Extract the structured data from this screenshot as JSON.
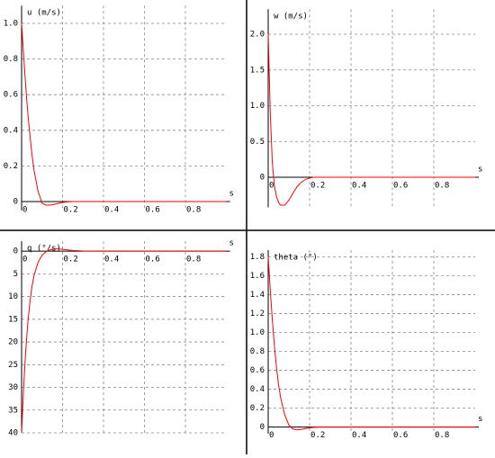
{
  "chart_data": [
    {
      "type": "line",
      "y_label": "u (m/s)",
      "x_label": "s",
      "color": "#ff0000",
      "grid": true,
      "x": [
        0,
        0.01,
        0.02,
        0.03,
        0.04,
        0.05,
        0.06,
        0.08,
        0.1,
        0.12,
        0.14,
        0.16,
        0.18,
        0.2,
        0.22,
        0.25,
        0.3,
        0.4,
        0.6,
        0.8,
        1.0
      ],
      "values": [
        1.0,
        0.82,
        0.65,
        0.5,
        0.38,
        0.27,
        0.18,
        0.06,
        -0.01,
        -0.02,
        -0.02,
        -0.015,
        -0.01,
        -0.005,
        -0.002,
        0,
        0,
        0,
        0,
        0,
        0
      ],
      "xlim": [
        0,
        1.0
      ],
      "ylim": [
        -0.05,
        1.1
      ],
      "xticks": [
        0,
        0.2,
        0.4,
        0.6,
        0.8
      ],
      "yticks": [
        0,
        0.2,
        0.4,
        0.6,
        0.8,
        {
          "value": 1,
          "label": "1.0"
        }
      ]
    },
    {
      "type": "line",
      "y_label": "w (m/s)",
      "x_label": "s",
      "color": "#ff0000",
      "grid": true,
      "x": [
        0,
        0.01,
        0.02,
        0.03,
        0.04,
        0.05,
        0.06,
        0.08,
        0.1,
        0.12,
        0.14,
        0.16,
        0.18,
        0.2,
        0.22,
        0.25,
        0.3,
        0.4,
        0.6,
        0.8,
        1.0
      ],
      "values": [
        2.0,
        0.9,
        0.2,
        -0.12,
        -0.27,
        -0.35,
        -0.39,
        -0.39,
        -0.32,
        -0.22,
        -0.13,
        -0.07,
        -0.03,
        -0.01,
        0,
        0,
        0,
        0,
        0,
        0,
        0
      ],
      "xlim": [
        0,
        1.0
      ],
      "ylim": [
        -0.42,
        2.35
      ],
      "xticks": [
        0,
        0.2,
        0.4,
        0.6,
        0.8
      ],
      "yticks": [
        0,
        0.5,
        {
          "value": 1,
          "label": "1.0"
        },
        1.5,
        {
          "value": 2,
          "label": "2.0"
        }
      ]
    },
    {
      "type": "line",
      "y_label": "q (°/s)",
      "x_label": "s",
      "color": "#ff0000",
      "grid": true,
      "x": [
        0,
        0.01,
        0.02,
        0.03,
        0.04,
        0.05,
        0.06,
        0.08,
        0.1,
        0.12,
        0.14,
        0.16,
        0.18,
        0.2,
        0.22,
        0.25,
        0.3,
        0.4,
        0.6,
        0.8,
        1.0
      ],
      "values": [
        40,
        30,
        22,
        16,
        11.5,
        8,
        5.5,
        2.5,
        0.9,
        0.1,
        -0.3,
        -0.5,
        -0.5,
        -0.4,
        -0.3,
        -0.15,
        -0.05,
        0,
        0,
        0,
        0
      ],
      "xlim": [
        0,
        1.0
      ],
      "ylim": [
        40,
        -2.2
      ],
      "xticks": [
        0,
        0.2,
        0.4,
        0.6,
        0.8
      ],
      "yticks": [
        0,
        5,
        10,
        15,
        20,
        25,
        30,
        35,
        40
      ]
    },
    {
      "type": "line",
      "y_label": "theta (°)",
      "x_label": "s",
      "color": "#ff0000",
      "grid": true,
      "x": [
        0,
        0.01,
        0.02,
        0.03,
        0.04,
        0.05,
        0.06,
        0.08,
        0.1,
        0.12,
        0.14,
        0.16,
        0.18,
        0.2,
        0.22,
        0.25,
        0.3,
        0.4,
        0.6,
        0.8,
        1.0
      ],
      "values": [
        1.8,
        1.45,
        1.13,
        0.86,
        0.63,
        0.45,
        0.31,
        0.13,
        0.02,
        -0.02,
        -0.03,
        -0.025,
        -0.015,
        -0.008,
        -0.004,
        0,
        0,
        0,
        0,
        0,
        0
      ],
      "xlim": [
        0,
        1.0
      ],
      "ylim": [
        -0.07,
        1.87
      ],
      "xticks": [
        0,
        0.2,
        0.4,
        0.6,
        0.8
      ],
      "yticks": [
        0,
        0.2,
        0.4,
        0.6,
        0.8,
        {
          "value": 1,
          "label": "1.0"
        },
        1.2,
        1.4,
        1.6,
        1.8
      ]
    }
  ]
}
